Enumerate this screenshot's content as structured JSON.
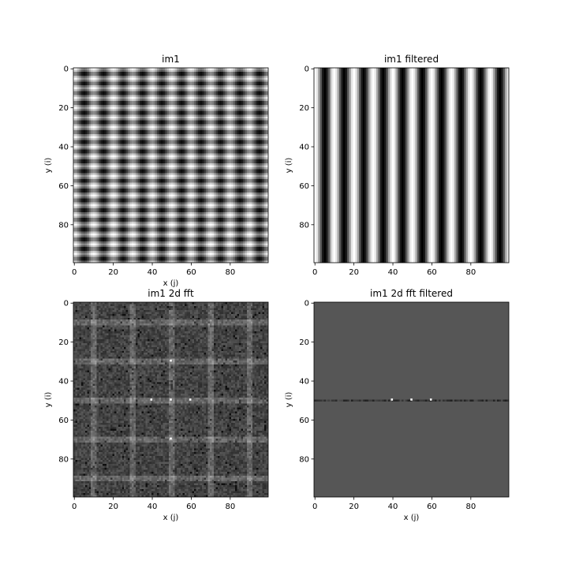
{
  "chart_data": [
    {
      "type": "heatmap",
      "title": "im1",
      "xlabel": "x (j)",
      "ylabel": "y (i)",
      "xlim": [
        0,
        100
      ],
      "ylim": [
        100,
        0
      ],
      "xticks": [
        0,
        20,
        40,
        60,
        80
      ],
      "yticks": [
        0,
        20,
        40,
        60,
        80
      ],
      "colormap": "gray",
      "pattern": "sum of vertical stripes (period ~10 px) and horizontal stripes (period ~5 px)"
    },
    {
      "type": "heatmap",
      "title": "im1 filtered",
      "xlabel": "",
      "ylabel": "y (i)",
      "xlim": [
        0,
        100
      ],
      "ylim": [
        100,
        0
      ],
      "xticks": [
        0,
        20,
        40,
        60,
        80
      ],
      "yticks": [
        0,
        20,
        40,
        60,
        80
      ],
      "colormap": "gray",
      "pattern": "vertical stripes only (period ~10 px)"
    },
    {
      "type": "heatmap",
      "title": "im1 2d fft",
      "xlabel": "x (j)",
      "ylabel": "y (i)",
      "xlim": [
        0,
        100
      ],
      "ylim": [
        100,
        0
      ],
      "xticks": [
        0,
        20,
        40,
        60,
        80
      ],
      "yticks": [
        0,
        20,
        40,
        60,
        80
      ],
      "colormap": "gray",
      "peaks": [
        {
          "x": 50,
          "y": 50
        },
        {
          "x": 40,
          "y": 50
        },
        {
          "x": 60,
          "y": 50
        },
        {
          "x": 50,
          "y": 30
        },
        {
          "x": 50,
          "y": 70
        }
      ]
    },
    {
      "type": "heatmap",
      "title": "im1 2d fft filtered",
      "xlabel": "x (j)",
      "ylabel": "y (i)",
      "xlim": [
        0,
        100
      ],
      "ylim": [
        100,
        0
      ],
      "xticks": [
        0,
        20,
        40,
        60,
        80
      ],
      "yticks": [
        0,
        20,
        40,
        60,
        80
      ],
      "colormap": "gray",
      "background": "#565656",
      "band_row": 50,
      "peaks": [
        {
          "x": 50,
          "y": 50
        },
        {
          "x": 40,
          "y": 50
        },
        {
          "x": 60,
          "y": 50
        }
      ]
    }
  ]
}
